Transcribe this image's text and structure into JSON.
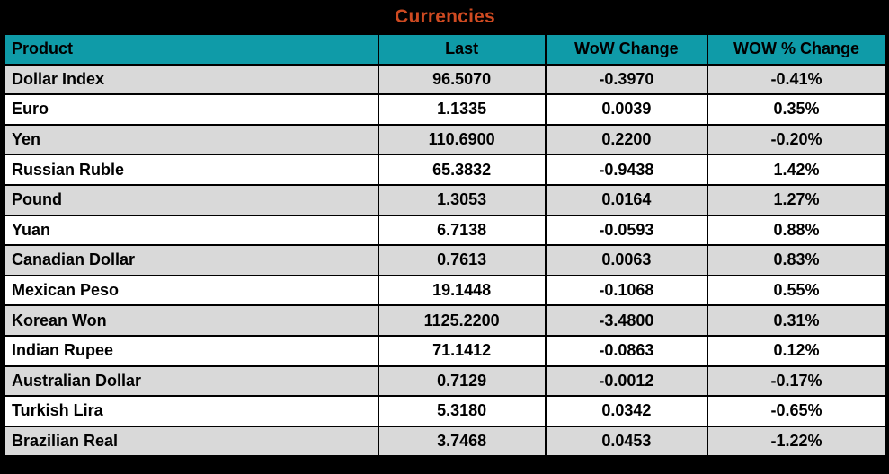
{
  "title": "Currencies",
  "colors": {
    "title": "#CE4A21",
    "header_bg": "#0F9BA8",
    "row_alt_bg": "#D9D9D9",
    "row_bg": "#FFFFFF",
    "border": "#000000",
    "text": "#000000"
  },
  "table": {
    "columns": [
      "Product",
      "Last",
      "WoW Change",
      "WOW % Change"
    ],
    "rows": [
      {
        "product": "Dollar Index",
        "last": "96.5070",
        "wow_change": "-0.3970",
        "wow_pct_change": "-0.41%"
      },
      {
        "product": "Euro",
        "last": "1.1335",
        "wow_change": "0.0039",
        "wow_pct_change": "0.35%"
      },
      {
        "product": "Yen",
        "last": "110.6900",
        "wow_change": "0.2200",
        "wow_pct_change": "-0.20%"
      },
      {
        "product": "Russian Ruble",
        "last": "65.3832",
        "wow_change": "-0.9438",
        "wow_pct_change": "1.42%"
      },
      {
        "product": "Pound",
        "last": "1.3053",
        "wow_change": "0.0164",
        "wow_pct_change": "1.27%"
      },
      {
        "product": "Yuan",
        "last": "6.7138",
        "wow_change": "-0.0593",
        "wow_pct_change": "0.88%"
      },
      {
        "product": "Canadian Dollar",
        "last": "0.7613",
        "wow_change": "0.0063",
        "wow_pct_change": "0.83%"
      },
      {
        "product": "Mexican Peso",
        "last": "19.1448",
        "wow_change": "-0.1068",
        "wow_pct_change": "0.55%"
      },
      {
        "product": "Korean Won",
        "last": "1125.2200",
        "wow_change": "-3.4800",
        "wow_pct_change": "0.31%"
      },
      {
        "product": "Indian Rupee",
        "last": "71.1412",
        "wow_change": "-0.0863",
        "wow_pct_change": "0.12%"
      },
      {
        "product": "Australian Dollar",
        "last": "0.7129",
        "wow_change": "-0.0012",
        "wow_pct_change": "-0.17%"
      },
      {
        "product": "Turkish Lira",
        "last": "5.3180",
        "wow_change": "0.0342",
        "wow_pct_change": "-0.65%"
      },
      {
        "product": "Brazilian Real",
        "last": "3.7468",
        "wow_change": "0.0453",
        "wow_pct_change": "-1.22%"
      }
    ]
  },
  "chart_data": {
    "type": "table",
    "title": "Currencies",
    "columns": [
      "Product",
      "Last",
      "WoW Change",
      "WOW % Change"
    ],
    "rows": [
      [
        "Dollar Index",
        96.507,
        -0.397,
        "-0.41%"
      ],
      [
        "Euro",
        1.1335,
        0.0039,
        "0.35%"
      ],
      [
        "Yen",
        110.69,
        0.22,
        "-0.20%"
      ],
      [
        "Russian Ruble",
        65.3832,
        -0.9438,
        "1.42%"
      ],
      [
        "Pound",
        1.3053,
        0.0164,
        "1.27%"
      ],
      [
        "Yuan",
        6.7138,
        -0.0593,
        "0.88%"
      ],
      [
        "Canadian Dollar",
        0.7613,
        0.0063,
        "0.83%"
      ],
      [
        "Mexican Peso",
        19.1448,
        -0.1068,
        "0.55%"
      ],
      [
        "Korean Won",
        1125.22,
        -3.48,
        "0.31%"
      ],
      [
        "Indian Rupee",
        71.1412,
        -0.0863,
        "0.12%"
      ],
      [
        "Australian Dollar",
        0.7129,
        -0.0012,
        "-0.17%"
      ],
      [
        "Turkish Lira",
        5.318,
        0.0342,
        "-0.65%"
      ],
      [
        "Brazilian Real",
        3.7468,
        0.0453,
        "-1.22%"
      ]
    ],
    "layout": {
      "header_fill": "#0F9BA8",
      "alt_row_fill": "#D9D9D9",
      "title_color": "#CE4A21",
      "background": "#000000"
    }
  }
}
